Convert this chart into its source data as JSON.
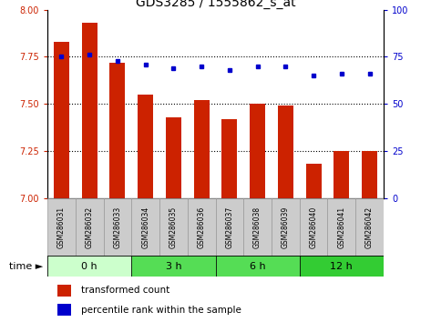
{
  "title": "GDS3285 / 1555862_s_at",
  "samples": [
    "GSM286031",
    "GSM286032",
    "GSM286033",
    "GSM286034",
    "GSM286035",
    "GSM286036",
    "GSM286037",
    "GSM286038",
    "GSM286039",
    "GSM286040",
    "GSM286041",
    "GSM286042"
  ],
  "bar_values": [
    7.83,
    7.93,
    7.72,
    7.55,
    7.43,
    7.52,
    7.42,
    7.5,
    7.49,
    7.18,
    7.25,
    7.25
  ],
  "percentile_values": [
    75,
    76,
    73,
    71,
    69,
    70,
    68,
    70,
    70,
    65,
    66,
    66
  ],
  "bar_color": "#cc2200",
  "dot_color": "#0000cc",
  "ylim_left": [
    7.0,
    8.0
  ],
  "ylim_right": [
    0,
    100
  ],
  "yticks_left": [
    7.0,
    7.25,
    7.5,
    7.75,
    8.0
  ],
  "yticks_right": [
    0,
    25,
    50,
    75,
    100
  ],
  "time_groups": [
    {
      "label": "0 h",
      "samples": [
        0,
        1,
        2
      ],
      "color": "#ccffcc"
    },
    {
      "label": "3 h",
      "samples": [
        3,
        4,
        5
      ],
      "color": "#55dd55"
    },
    {
      "label": "6 h",
      "samples": [
        6,
        7,
        8
      ],
      "color": "#55dd55"
    },
    {
      "label": "12 h",
      "samples": [
        9,
        10,
        11
      ],
      "color": "#33cc33"
    }
  ],
  "legend_bar_label": "transformed count",
  "legend_dot_label": "percentile rank within the sample",
  "background_color": "#ffffff",
  "plot_bg_color": "#ffffff",
  "tick_label_color_left": "#cc2200",
  "tick_label_color_right": "#0000cc",
  "cell_color": "#cccccc",
  "cell_edge_color": "#999999",
  "time_text_color": "#000000",
  "time_label": "time",
  "bar_width": 0.55
}
